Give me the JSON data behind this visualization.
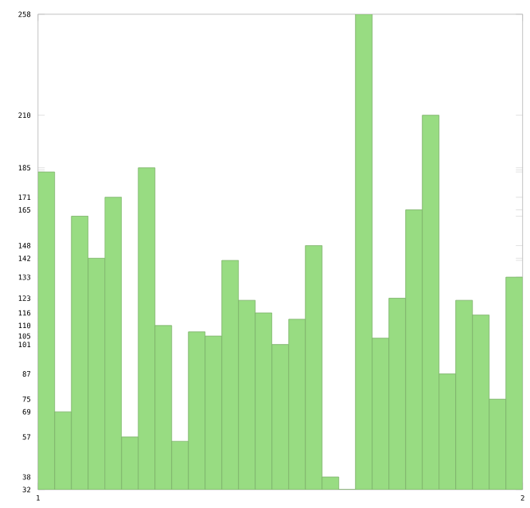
{
  "chart_data": {
    "type": "bar",
    "color": "#98dc82",
    "x": [
      1.0172,
      1.0517,
      1.0862,
      1.1207,
      1.1552,
      1.1897,
      1.2241,
      1.2586,
      1.2931,
      1.3276,
      1.3621,
      1.3966,
      1.431,
      1.4655,
      1.5,
      1.5345,
      1.569,
      1.6034,
      1.6379,
      1.6724,
      1.7069,
      1.7414,
      1.7759,
      1.8103,
      1.8448,
      1.8793,
      1.9138,
      1.9483,
      1.9828
    ],
    "values": [
      183,
      69,
      162,
      142,
      171,
      57,
      185,
      110,
      55,
      107,
      105,
      141,
      122,
      116,
      101,
      113,
      148,
      38,
      32,
      258,
      104,
      123,
      165,
      210,
      87,
      122,
      115,
      75,
      133
    ],
    "xlim": [
      1,
      2
    ],
    "xticks": [
      1,
      2
    ],
    "ylim": [
      32,
      258
    ],
    "yticks": [
      32,
      {
        "value": 35,
        "label": null
      },
      38,
      {
        "value": 55,
        "label": null
      },
      57,
      69,
      75,
      87,
      101,
      {
        "value": 104,
        "label": null
      },
      105,
      {
        "value": 107,
        "label": null
      },
      110,
      {
        "value": 113,
        "label": null
      },
      {
        "value": 115,
        "label": null
      },
      116,
      {
        "value": 122,
        "label": null
      },
      123,
      133,
      {
        "value": 141,
        "label": null
      },
      142,
      148,
      {
        "value": 162,
        "label": null
      },
      165,
      171,
      {
        "value": 183,
        "label": null
      },
      {
        "value": 184,
        "label": null
      },
      185,
      210,
      258
    ],
    "grid": false
  }
}
